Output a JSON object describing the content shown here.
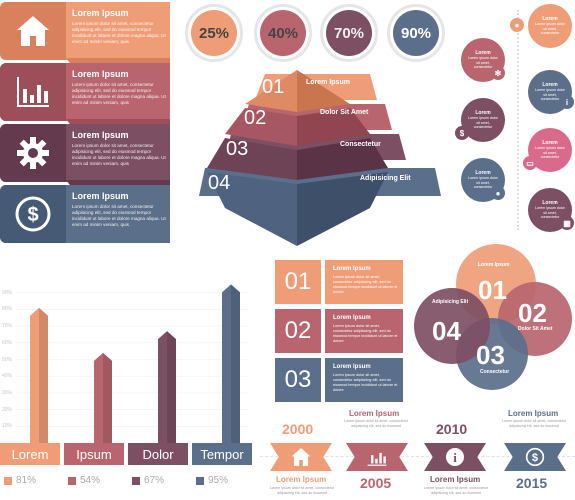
{
  "colors": {
    "orange": "#ef9d77",
    "orange_dark": "#d9815d",
    "rose": "#b8656f",
    "rose_dark": "#9c4f59",
    "plum": "#7d4f63",
    "plum_dark": "#633a4e",
    "slate": "#5b6e8a",
    "slate_dark": "#465a75",
    "pink": "#d96a8c"
  },
  "icon_cards": [
    {
      "icon": "home-icon",
      "title": "Lorem Ipsum",
      "body": "Lorem ipsum dolor sit amet, consectetur adipisicing elit, sed do eiusmod tempor incididunt ut labore et dolore magna aliqua. Ut enim ad minim veniam, quis"
    },
    {
      "icon": "bar-chart-icon",
      "title": "Lorem Ipsum",
      "body": "Lorem ipsum dolor sit amet, consectetur adipisicing elit, sed do eiusmod tempor incididunt ut labore et dolore magna aliqua. Ut enim ad minim veniam, quis"
    },
    {
      "icon": "gear-icon",
      "title": "Lorem Ipsum",
      "body": "Lorem ipsum dolor sit amet, consectetur adipisicing elit, sed do eiusmod tempor incididunt ut labore et dolore magna aliqua. Ut enim ad minim veniam, quis"
    },
    {
      "icon": "dollar-icon",
      "title": "Lorem Ipsum",
      "body": "Lorem ipsum dolor sit amet, consectetur adipisicing elit, sed do eiusmod tempor incididunt ut labore et dolore magna aliqua. Ut enim ad minim veniam, quis"
    }
  ],
  "percent_circles": [
    {
      "value": 25,
      "label": "25%"
    },
    {
      "value": 40,
      "label": "40%"
    },
    {
      "value": 70,
      "label": "70%"
    },
    {
      "value": 90,
      "label": "90%"
    }
  ],
  "pyramid": [
    {
      "num": "01",
      "label": "Lorem Ipsum"
    },
    {
      "num": "02",
      "label": "Dolor Sit Amet"
    },
    {
      "num": "03",
      "label": "Consectetur"
    },
    {
      "num": "04",
      "label": "Adipisicing Elit"
    }
  ],
  "timeline": [
    {
      "title": "Lorem",
      "body": "Lorem ipsum dolor sit amet, consectetur",
      "icon": "person-icon"
    },
    {
      "title": "Lorem",
      "body": "Lorem ipsum dolor sit amet, consectetur",
      "icon": "gear-icon"
    },
    {
      "title": "Lorem",
      "body": "Lorem ipsum dolor sit amet, consectetur",
      "icon": "info-icon"
    },
    {
      "title": "Lorem",
      "body": "Lorem ipsum dolor sit amet, consectetur",
      "icon": "dollar-icon"
    },
    {
      "title": "Lorem",
      "body": "Lorem ipsum dolor sit amet, consectetur",
      "icon": "monitor-icon"
    },
    {
      "title": "Lorem",
      "body": "Lorem ipsum dolor sit amet, consectetur",
      "icon": "people-icon"
    },
    {
      "title": "Lorem",
      "body": "Lorem ipsum dolor sit amet, consectetur",
      "icon": "calendar-icon"
    }
  ],
  "chart_data": {
    "type": "bar",
    "categories": [
      "Lorem",
      "Ipsum",
      "Dolor",
      "Tempor"
    ],
    "values": [
      81,
      54,
      67,
      95
    ],
    "value_labels": [
      "81%",
      "54%",
      "67%",
      "95%"
    ],
    "yticks": [
      "90%",
      "80%",
      "70%",
      "60%",
      "50%",
      "40%",
      "30%",
      "20%",
      "10%"
    ],
    "ylim": [
      0,
      100
    ],
    "colors": [
      "#ef9d77",
      "#b8656f",
      "#7d4f63",
      "#5b6e8a"
    ]
  },
  "numbered_rows": [
    {
      "num": "01",
      "title": "Lorem Ipsum",
      "body": "Lorem ipsum dolor sit amet, consectetur adipisicing elit, sed do eiusmod tempor incididunt ut labore et dolore"
    },
    {
      "num": "02",
      "title": "Lorem Ipsum",
      "body": "Lorem ipsum dolor sit amet, consectetur adipisicing elit, sed do eiusmod tempor incididunt ut labore et dolore"
    },
    {
      "num": "03",
      "title": "Lorem Ipsum",
      "body": "Lorem ipsum dolor sit amet, consectetur adipisicing elit, sed do eiusmod tempor incididunt ut labore et dolore"
    }
  ],
  "venn": [
    {
      "num": "01",
      "label": "Lorem Ipsum"
    },
    {
      "num": "02",
      "label": "Dolor Sit Amet"
    },
    {
      "num": "03",
      "label": "Consectetur"
    },
    {
      "num": "04",
      "label": "Adipisicing Elit"
    }
  ],
  "years": [
    {
      "year": "2000",
      "title": "Lorem Ipsum",
      "body": "Lorem ipsum dolor sit amet, consectetur adipisicing elit, sed do eiusmod",
      "icon": "home-icon"
    },
    {
      "year": "2005",
      "title": "Lorem Ipsum",
      "body": "Lorem ipsum dolor sit amet, consectetur adipisicing elit, sed do eiusmod",
      "icon": "bar-chart-icon"
    },
    {
      "year": "2010",
      "title": "Lorem Ipsum",
      "body": "Lorem ipsum dolor sit amet, consectetur adipisicing elit, sed do eiusmod",
      "icon": "info-icon"
    },
    {
      "year": "2015",
      "title": "Lorem Ipsum",
      "body": "Lorem ipsum dolor sit amet, consectetur adipisicing elit, sed do eiusmod",
      "icon": "dollar-icon"
    }
  ]
}
